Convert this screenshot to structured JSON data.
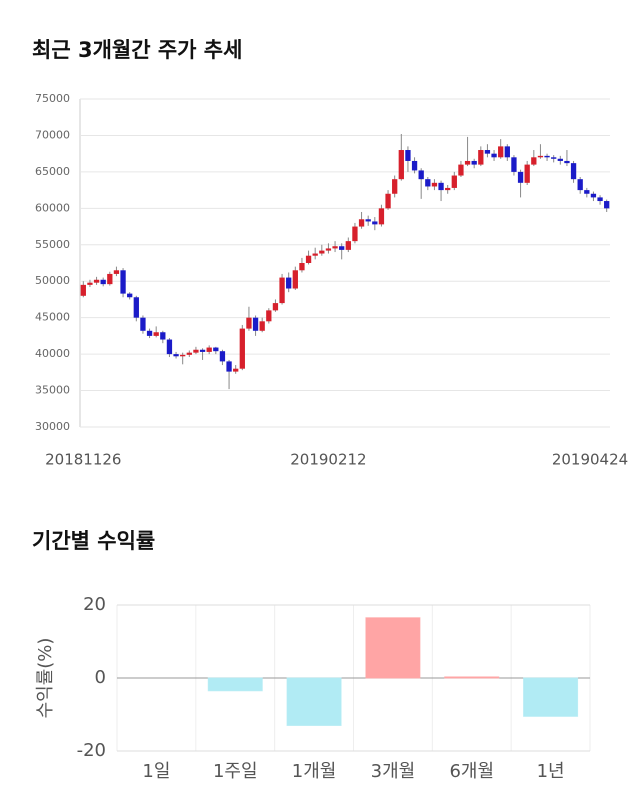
{
  "chart_data": [
    {
      "type": "candlestick",
      "title": "최근 3개월간 주가 추세",
      "categories": [
        "20181126",
        null,
        null,
        null,
        null,
        null,
        null,
        null,
        null,
        null,
        null,
        null,
        null,
        null,
        null,
        null,
        null,
        null,
        null,
        null,
        null,
        null,
        null,
        null,
        null,
        null,
        null,
        null,
        null,
        null,
        null,
        null,
        null,
        null,
        null,
        null,
        null,
        "20190212",
        null,
        null,
        null,
        null,
        null,
        null,
        null,
        null,
        null,
        null,
        null,
        null,
        null,
        null,
        null,
        null,
        null,
        null,
        null,
        null,
        null,
        null,
        null,
        null,
        null,
        null,
        null,
        null,
        null,
        null,
        null,
        null,
        null,
        null,
        null,
        null,
        null,
        null,
        null,
        null,
        null,
        "20190424"
      ],
      "open": [
        48000,
        49500,
        49800,
        50200,
        49600,
        51000,
        51500,
        48300,
        47800,
        45000,
        43200,
        42500,
        43000,
        42000,
        40000,
        39700,
        39900,
        40200,
        40600,
        40300,
        40900,
        40400,
        39000,
        37600,
        38000,
        43500,
        45000,
        43200,
        44500,
        46000,
        47000,
        50500,
        49000,
        51500,
        52500,
        53500,
        53800,
        54200,
        54500,
        54800,
        54300,
        55500,
        57500,
        58500,
        58200,
        57800,
        60000,
        62000,
        64000,
        68000,
        66500,
        65200,
        64000,
        63000,
        63500,
        62500,
        62800,
        64500,
        66000,
        66500,
        66000,
        68000,
        67500,
        67000,
        68500,
        67000,
        65000,
        63500,
        66000,
        67000,
        67200,
        67000,
        66800,
        66500,
        66200,
        64000,
        62500,
        62000,
        61500,
        61000
      ],
      "high": [
        50000,
        50200,
        50600,
        50500,
        51300,
        52000,
        51800,
        48500,
        48000,
        45300,
        43500,
        43800,
        43200,
        42200,
        40300,
        40200,
        40500,
        41000,
        40800,
        41200,
        41000,
        40600,
        39200,
        38500,
        44000,
        46500,
        45300,
        45000,
        46300,
        47500,
        51000,
        51200,
        52000,
        53200,
        54200,
        54600,
        55000,
        55200,
        55500,
        55200,
        56000,
        58000,
        59500,
        59000,
        58800,
        60500,
        62500,
        64500,
        70200,
        68500,
        67000,
        65500,
        64300,
        64000,
        63800,
        63200,
        65000,
        66500,
        69800,
        66800,
        68500,
        68800,
        68000,
        69500,
        68800,
        67300,
        65300,
        66500,
        68000,
        68800,
        67500,
        67300,
        67200,
        68000,
        66500,
        64300,
        62800,
        62300,
        61800,
        61200
      ],
      "low": [
        47800,
        49200,
        49500,
        49300,
        49400,
        50700,
        47800,
        47500,
        44500,
        42800,
        42200,
        42300,
        41500,
        39600,
        39400,
        38600,
        39600,
        40000,
        39200,
        40000,
        40000,
        38500,
        35200,
        37300,
        37800,
        43200,
        42500,
        43000,
        44200,
        45800,
        46800,
        48500,
        48800,
        51200,
        52300,
        53000,
        53500,
        53800,
        54000,
        53000,
        54000,
        55200,
        57200,
        57600,
        57000,
        57500,
        59800,
        61500,
        63800,
        65000,
        64800,
        61300,
        62500,
        62500,
        61000,
        62000,
        62500,
        64300,
        65800,
        65500,
        65800,
        67000,
        66500,
        66800,
        66500,
        64500,
        61500,
        63200,
        65800,
        66800,
        66500,
        66300,
        66000,
        65800,
        63500,
        62000,
        61500,
        61000,
        60500,
        59500
      ],
      "close": [
        49500,
        49800,
        50200,
        49600,
        51000,
        51500,
        48300,
        47800,
        45000,
        43200,
        42500,
        43000,
        42000,
        40000,
        39700,
        39900,
        40200,
        40600,
        40300,
        40900,
        40400,
        39000,
        37600,
        38000,
        43500,
        45000,
        43200,
        44500,
        46000,
        47000,
        50500,
        49000,
        51500,
        52500,
        53500,
        53800,
        54200,
        54500,
        54800,
        54300,
        55500,
        57500,
        58500,
        58200,
        57800,
        60000,
        62000,
        64000,
        68000,
        66500,
        65200,
        64000,
        63000,
        63500,
        62500,
        62800,
        64500,
        66000,
        66500,
        66000,
        68000,
        67500,
        67000,
        68500,
        67000,
        65000,
        63500,
        66000,
        67000,
        67200,
        67000,
        66800,
        66500,
        66200,
        64000,
        62500,
        62000,
        61500,
        61000,
        60000
      ],
      "up_color": "#d7202c",
      "down_color": "#1b1bc8",
      "ylim": [
        30000,
        75000
      ],
      "yticks": [
        30000,
        35000,
        40000,
        45000,
        50000,
        55000,
        60000,
        65000,
        70000,
        75000
      ],
      "grid": true
    },
    {
      "type": "bar",
      "title": "기간별 수익률",
      "ylabel": "수익률(%)",
      "categories": [
        "1일",
        "1주일",
        "1개월",
        "3개월",
        "6개월",
        "1년"
      ],
      "values": [
        0,
        -3.5,
        -13,
        16.5,
        0.3,
        -10.5
      ],
      "positive_color": "#ffa5a5",
      "negative_color": "#b1ebf4",
      "ylim": [
        -20,
        20
      ],
      "yticks": [
        -20,
        0,
        20
      ],
      "grid": true
    }
  ]
}
